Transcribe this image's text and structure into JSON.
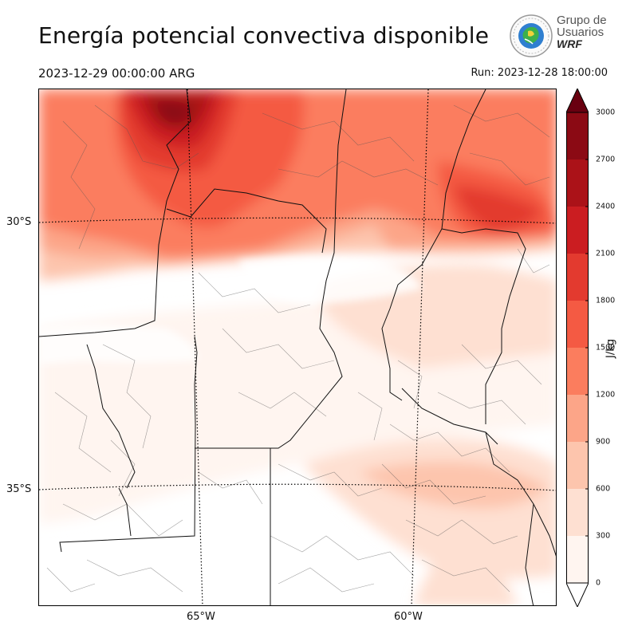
{
  "header": {
    "title": "Energía potencial convectiva disponible",
    "valid_time": "2023-12-29 00:00:00 ARG",
    "run_time": "Run: 2023-12-28 18:00:00"
  },
  "logo": {
    "line1": "Grupo de",
    "line2": "Usuarios",
    "line3": "WRF"
  },
  "map": {
    "lat_labels": [
      "30°S",
      "35°S"
    ],
    "lon_labels": [
      "65°W",
      "60°W"
    ]
  },
  "colorbar": {
    "unit": "J/kg",
    "levels": [
      0,
      300,
      600,
      900,
      1200,
      1500,
      1800,
      2100,
      2400,
      2700,
      3000
    ],
    "tick_labels": [
      "0",
      "300",
      "600",
      "900",
      "1200",
      "1500",
      "1800",
      "2100",
      "2400",
      "2700",
      "3000"
    ],
    "colors": [
      "#fff5f0",
      "#fee0d2",
      "#fdc5ad",
      "#fca588",
      "#fb7d5e",
      "#f45a43",
      "#e33a2f",
      "#cb1d21",
      "#ab1218",
      "#8b0a14",
      "#690010"
    ],
    "extend": "both"
  }
}
